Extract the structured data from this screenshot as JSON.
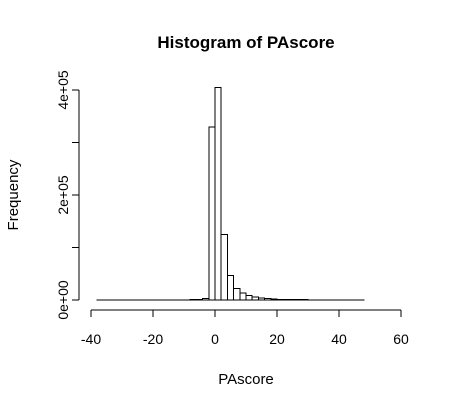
{
  "chart_data": {
    "type": "bar",
    "title": "Histogram of PAscore",
    "xlabel": "PAscore",
    "ylabel": "Frequency",
    "xlim": [
      -40,
      65
    ],
    "ylim": [
      0,
      420000
    ],
    "grid": false,
    "x_ticks": [
      -40,
      -20,
      0,
      20,
      40,
      60
    ],
    "x_tick_labels": [
      "-40",
      "-20",
      "0",
      "20",
      "40",
      "60"
    ],
    "y_ticks": [
      0,
      100000,
      200000,
      300000,
      400000
    ],
    "y_tick_labels": [
      "0e+00",
      "2e+05",
      "4e+05"
    ],
    "y_labeled_ticks": [
      0,
      200000,
      400000
    ],
    "bin_width": 2,
    "bin_starts": [
      -38,
      -36,
      -34,
      -32,
      -30,
      -28,
      -26,
      -24,
      -22,
      -20,
      -18,
      -16,
      -14,
      -12,
      -10,
      -8,
      -6,
      -4,
      -2,
      0,
      2,
      4,
      6,
      8,
      10,
      12,
      14,
      16,
      18,
      20,
      22,
      24,
      26,
      28,
      30,
      32,
      34,
      36,
      38,
      40,
      42,
      44,
      46,
      48,
      50,
      52,
      54,
      56,
      58,
      60,
      62
    ],
    "values": [
      100,
      100,
      100,
      100,
      100,
      100,
      100,
      100,
      100,
      100,
      100,
      100,
      150,
      200,
      300,
      500,
      800,
      3000,
      330000,
      405000,
      125000,
      47000,
      22000,
      13000,
      8500,
      5500,
      3500,
      2500,
      1800,
      1300,
      1000,
      800,
      650,
      500,
      400,
      350,
      300,
      250,
      200,
      180,
      150,
      120,
      100,
      90,
      80,
      70,
      60,
      50,
      40,
      30,
      20
    ]
  }
}
